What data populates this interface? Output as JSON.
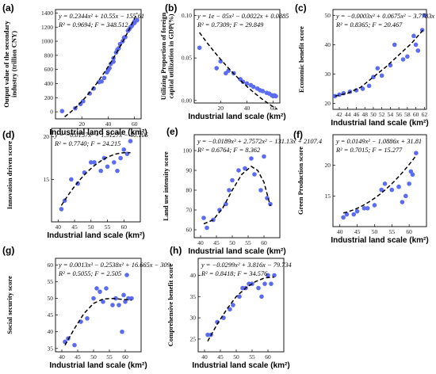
{
  "chart_data": [
    {
      "id": "a",
      "type": "scatter",
      "panel_label": "(a)",
      "equation": "y = 0.2344x² + 10.55x − 155.61",
      "stats": "R² = 0.9694; F = 348.512",
      "xlabel": "Industrial land scale (km²)",
      "ylabel": "Output value of the secondary industry (trillion CNY)",
      "xlim": [
        0,
        65
      ],
      "ylim": [
        -100,
        1450
      ],
      "xticks": [
        20,
        40,
        60
      ],
      "yticks": [
        0,
        200,
        400,
        600,
        800,
        1000,
        1200,
        1400
      ],
      "xtick_labels": [
        "20",
        "40",
        "60"
      ],
      "ytick_labels": [
        "0",
        "200",
        "400",
        "600",
        "800",
        "1000",
        "1200",
        "1400"
      ],
      "coeffs": [
        -155.61,
        10.55,
        0.2344
      ],
      "fit_range": [
        7,
        62
      ],
      "points": [
        [
          5,
          10
        ],
        [
          15,
          50
        ],
        [
          19,
          110
        ],
        [
          21,
          150
        ],
        [
          26,
          260
        ],
        [
          29,
          330
        ],
        [
          33,
          420
        ],
        [
          35,
          430
        ],
        [
          37,
          480
        ],
        [
          39,
          560
        ],
        [
          40,
          590
        ],
        [
          41,
          620
        ],
        [
          42,
          680
        ],
        [
          44,
          710
        ],
        [
          44,
          760
        ],
        [
          46,
          840
        ],
        [
          47,
          880
        ],
        [
          48,
          900
        ],
        [
          49,
          960
        ],
        [
          51,
          1000
        ],
        [
          52,
          1050
        ],
        [
          53,
          1060
        ],
        [
          55,
          1150
        ],
        [
          56,
          1170
        ],
        [
          57,
          1200
        ],
        [
          58,
          1220
        ],
        [
          59,
          1250
        ],
        [
          60,
          1260
        ],
        [
          60,
          1280
        ],
        [
          61,
          1290
        ],
        [
          62,
          1300
        ]
      ]
    },
    {
      "id": "b",
      "type": "scatter",
      "panel_label": "(b)",
      "equation": "y = 1e − 05x² − 0.0022x + 0.0885",
      "stats": "R² = 0.7309; F = 29.849",
      "xlabel": "Industrial land scale (km²)",
      "ylabel": "Utilizing Proportion of foreign capital utilization in GDP(%)",
      "xlim": [
        0,
        65
      ],
      "ylim": [
        -0.003,
        0.107
      ],
      "xticks": [
        20,
        40,
        60
      ],
      "yticks": [
        0.0,
        0.05,
        0.1
      ],
      "xtick_labels": [
        "20",
        "40",
        "60"
      ],
      "ytick_labels": [
        "0.00",
        "0.05",
        "0.10"
      ],
      "coeffs": [
        0.0885,
        -0.0022,
        1e-05
      ],
      "fit_range": [
        4,
        63
      ],
      "points": [
        [
          4,
          0.062
        ],
        [
          17,
          0.038
        ],
        [
          20,
          0.046
        ],
        [
          24,
          0.032
        ],
        [
          26,
          0.035
        ],
        [
          30,
          0.032
        ],
        [
          35,
          0.025
        ],
        [
          37,
          0.022
        ],
        [
          40,
          0.02
        ],
        [
          43,
          0.018
        ],
        [
          45,
          0.016
        ],
        [
          48,
          0.014
        ],
        [
          50,
          0.012
        ],
        [
          52,
          0.011
        ],
        [
          55,
          0.009
        ],
        [
          57,
          0.008
        ],
        [
          59,
          0.006
        ],
        [
          60,
          0.005
        ],
        [
          61,
          0.006
        ],
        [
          62,
          0.005
        ]
      ]
    },
    {
      "id": "c",
      "type": "scatter",
      "panel_label": "(c)",
      "equation": "y = −0.0003x³ + 0.0675x² − 3.7783x + 82.149",
      "stats": "R² = 0.8365; F = 20.467",
      "xlabel": "Industrial land scale (km²)",
      "ylabel": "Economic benefit score",
      "xlim": [
        40.5,
        62.5
      ],
      "ylim": [
        18,
        52
      ],
      "xticks": [
        42,
        44,
        46,
        48,
        50,
        52,
        54,
        56,
        58,
        60,
        62
      ],
      "yticks": [
        20,
        30,
        40,
        50
      ],
      "xtick_labels": [
        "42",
        "44",
        "46",
        "48",
        "50",
        "52",
        "54",
        "56",
        "58",
        "60",
        "62"
      ],
      "ytick_labels": [
        "20",
        "30",
        "40",
        "50"
      ],
      "fit": [
        [
          41,
          22.5
        ],
        [
          44,
          23.5
        ],
        [
          47,
          25.5
        ],
        [
          50,
          29
        ],
        [
          53,
          32.5
        ],
        [
          56,
          36.5
        ],
        [
          59,
          40.5
        ],
        [
          62,
          45.5
        ]
      ],
      "points": [
        [
          41,
          22.5
        ],
        [
          42,
          23
        ],
        [
          43,
          23.5
        ],
        [
          44.5,
          24
        ],
        [
          46,
          24.5
        ],
        [
          47.5,
          25
        ],
        [
          49,
          26
        ],
        [
          50,
          29
        ],
        [
          51,
          32
        ],
        [
          52,
          29.5
        ],
        [
          54,
          33
        ],
        [
          55,
          40
        ],
        [
          57,
          35
        ],
        [
          58,
          36
        ],
        [
          59.5,
          43
        ],
        [
          60,
          40
        ],
        [
          60.5,
          38
        ],
        [
          61.5,
          45
        ],
        [
          62,
          50
        ]
      ]
    },
    {
      "id": "d",
      "type": "scatter",
      "panel_label": "(d)",
      "equation": "y = −0.0157x² + 1.9127x − 40.105",
      "stats": "R² = 0.7740; F = 24.215",
      "xlabel": "Industrial land scale (km²)",
      "ylabel": "Innovation driven score",
      "xlim": [
        38,
        65
      ],
      "ylim": [
        10,
        21
      ],
      "xticks": [
        40,
        45,
        50,
        55,
        60
      ],
      "yticks": [
        15,
        20
      ],
      "xtick_labels": [
        "40",
        "45",
        "50",
        "55",
        "60"
      ],
      "ytick_labels": [
        "15",
        "20"
      ],
      "coeffs": [
        -40.105,
        1.9127,
        -0.0157
      ],
      "fit_range": [
        41,
        62
      ],
      "points": [
        [
          41,
          11.5
        ],
        [
          42,
          12.5
        ],
        [
          44,
          15
        ],
        [
          46,
          14.5
        ],
        [
          48,
          15.8
        ],
        [
          50,
          17
        ],
        [
          51,
          17
        ],
        [
          53,
          16
        ],
        [
          54,
          17.5
        ],
        [
          55,
          16.5
        ],
        [
          57,
          17
        ],
        [
          58,
          16
        ],
        [
          59,
          17.5
        ],
        [
          60,
          18.5
        ],
        [
          61,
          18
        ],
        [
          62,
          19.5
        ]
      ]
    },
    {
      "id": "e",
      "type": "scatter",
      "panel_label": "(e)",
      "equation": "y = −0.0189x³ + 2.7572x² − 131.13x + 2107.4",
      "stats": "R² = 0.6764; F = 8.362",
      "xlabel": "Industrial land scale (km²)",
      "ylabel": "Land use intensity score",
      "xlim": [
        38,
        65
      ],
      "ylim": [
        56,
        108
      ],
      "xticks": [
        40,
        45,
        50,
        55,
        60
      ],
      "yticks": [
        60,
        70,
        80,
        90,
        100
      ],
      "xtick_labels": [
        "40",
        "45",
        "50",
        "55",
        "60"
      ],
      "ytick_labels": [
        "60",
        "70",
        "80",
        "90",
        "100"
      ],
      "fit": [
        [
          41,
          63
        ],
        [
          44,
          65
        ],
        [
          47,
          71
        ],
        [
          50,
          80
        ],
        [
          53,
          88
        ],
        [
          56,
          92
        ],
        [
          58,
          90
        ],
        [
          60,
          84
        ],
        [
          62,
          72
        ]
      ],
      "points": [
        [
          41,
          66
        ],
        [
          42,
          61
        ],
        [
          44,
          65
        ],
        [
          46,
          70
        ],
        [
          48,
          73
        ],
        [
          49,
          80
        ],
        [
          50,
          85
        ],
        [
          52,
          90
        ],
        [
          54,
          91
        ],
        [
          56,
          96
        ],
        [
          57,
          88
        ],
        [
          59,
          80
        ],
        [
          60,
          97
        ],
        [
          61,
          76
        ],
        [
          62,
          73
        ]
      ]
    },
    {
      "id": "f",
      "type": "scatter",
      "panel_label": "(f)",
      "equation": "y = 0.0149x² − 1.0886x + 31.81",
      "stats": "R² = 0.7015; F = 15.277",
      "xlabel": "Industrial land scale (km²)",
      "ylabel": "Green Production score",
      "xlim": [
        38,
        65
      ],
      "ylim": [
        10,
        25
      ],
      "xticks": [
        40,
        45,
        50,
        55,
        60
      ],
      "yticks": [
        15,
        20
      ],
      "xtick_labels": [
        "40",
        "45",
        "50",
        "55",
        "60"
      ],
      "ytick_labels": [
        "15",
        "20"
      ],
      "coeffs": [
        31.81,
        -1.0886,
        0.0149
      ],
      "fit_range": [
        41,
        62
      ],
      "points": [
        [
          41,
          11.5
        ],
        [
          42,
          12
        ],
        [
          44,
          12
        ],
        [
          45,
          12.5
        ],
        [
          47,
          13
        ],
        [
          48,
          13
        ],
        [
          50,
          13.5
        ],
        [
          52,
          16
        ],
        [
          53,
          17
        ],
        [
          55,
          16
        ],
        [
          57,
          16.5
        ],
        [
          58,
          14
        ],
        [
          59,
          15
        ],
        [
          60,
          17
        ],
        [
          60.5,
          19
        ],
        [
          61,
          18.5
        ],
        [
          62,
          22
        ]
      ]
    },
    {
      "id": "g",
      "type": "scatter",
      "panel_label": "(g)",
      "equation": "y = 0.0013x³ − 0.2538x² + 16.665x − 309",
      "stats": "R² = 0.5055; F = 2.505",
      "xlabel": "Industrial land scale (km²)",
      "ylabel": "Social security score",
      "xlim": [
        38,
        65
      ],
      "ylim": [
        34,
        62
      ],
      "xticks": [
        40,
        45,
        50,
        55,
        60
      ],
      "yticks": [
        35,
        40,
        45,
        50,
        55,
        60
      ],
      "xtick_labels": [
        "40",
        "45",
        "50",
        "55",
        "60"
      ],
      "ytick_labels": [
        "35",
        "40",
        "45",
        "50",
        "55",
        "60"
      ],
      "fit": [
        [
          41,
          36
        ],
        [
          44,
          41
        ],
        [
          47,
          45.5
        ],
        [
          50,
          48.5
        ],
        [
          53,
          49.8
        ],
        [
          56,
          50
        ],
        [
          59,
          49.7
        ],
        [
          62,
          49.5
        ]
      ],
      "points": [
        [
          41,
          37
        ],
        [
          42,
          38
        ],
        [
          44,
          36
        ],
        [
          46,
          43
        ],
        [
          48,
          44
        ],
        [
          50,
          50
        ],
        [
          51,
          53
        ],
        [
          52,
          52
        ],
        [
          53,
          49
        ],
        [
          54,
          53
        ],
        [
          56,
          48
        ],
        [
          57,
          50
        ],
        [
          58,
          48
        ],
        [
          59,
          40
        ],
        [
          59.5,
          51
        ],
        [
          60,
          49
        ],
        [
          60.5,
          57
        ],
        [
          61,
          50
        ],
        [
          62,
          50
        ]
      ]
    },
    {
      "id": "h",
      "type": "scatter",
      "panel_label": "(h)",
      "equation": "y = −0.0299x² + 3.816x − 79.734",
      "stats": "R² = 0.8418; F = 34.576",
      "xlabel": "Industrial land scale (km²)",
      "ylabel": "Comprehensive benefit score",
      "xlim": [
        38,
        65
      ],
      "ylim": [
        22,
        44
      ],
      "xticks": [
        40,
        45,
        50,
        55,
        60
      ],
      "yticks": [
        25,
        30,
        35,
        40
      ],
      "xtick_labels": [
        "40",
        "45",
        "50",
        "55",
        "60"
      ],
      "ytick_labels": [
        "25",
        "30",
        "35",
        "40"
      ],
      "fit": [
        [
          41,
          24.5
        ],
        [
          44,
          28.5
        ],
        [
          47,
          32
        ],
        [
          50,
          35
        ],
        [
          53,
          37
        ],
        [
          56,
          38.5
        ],
        [
          59,
          39.4
        ],
        [
          62,
          39.6
        ]
      ],
      "points": [
        [
          41,
          26
        ],
        [
          42,
          26
        ],
        [
          44,
          29
        ],
        [
          46,
          30
        ],
        [
          48,
          32
        ],
        [
          49,
          33
        ],
        [
          51,
          35
        ],
        [
          52,
          37
        ],
        [
          53,
          37
        ],
        [
          54,
          38
        ],
        [
          55,
          38
        ],
        [
          57,
          37
        ],
        [
          58,
          35
        ],
        [
          59,
          38
        ],
        [
          60,
          40
        ],
        [
          61,
          38
        ],
        [
          62,
          40
        ]
      ]
    }
  ]
}
